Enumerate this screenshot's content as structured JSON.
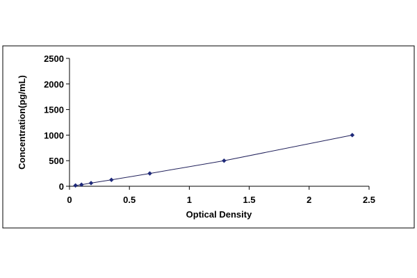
{
  "colors": {
    "background": "#ffffff",
    "border": "#000000",
    "axis": "#000000",
    "line": "#1f1f5a",
    "marker": "#1f2a7a"
  },
  "chart_data": {
    "type": "scatter",
    "title": "",
    "xlabel": "Optical Density",
    "ylabel": "Concentration(pg/mL)",
    "xlim": [
      0,
      2.5
    ],
    "ylim": [
      0,
      2500
    ],
    "x_ticks": [
      0,
      0.5,
      1,
      1.5,
      2,
      2.5
    ],
    "x_tick_labels": [
      "0",
      "0.5",
      "1",
      "1.5",
      "2",
      "2.5"
    ],
    "y_ticks": [
      0,
      500,
      1000,
      1500,
      2000,
      2500
    ],
    "y_tick_labels": [
      "0",
      "500",
      "1000",
      "1500",
      "2000",
      "2500"
    ],
    "grid": false,
    "legend": "none",
    "trendline": true,
    "series": [
      {
        "x": [
          0.05,
          0.1,
          0.18,
          0.35,
          0.67,
          1.29,
          2.36
        ],
        "y": [
          15.6,
          31.2,
          62.5,
          125,
          250,
          500,
          1000
        ]
      }
    ]
  }
}
